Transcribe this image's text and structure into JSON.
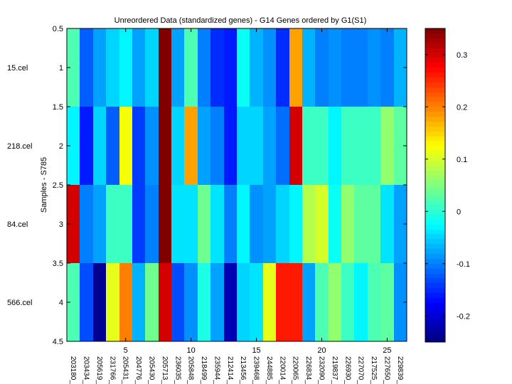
{
  "chart_data": {
    "type": "heatmap",
    "title": "Unreordered Data (standardized genes) - G14 Genes ordered by G1(S1)",
    "ylabel": "Samples - S785",
    "xlabel": "",
    "rows": [
      "15.cel",
      "218.cel",
      "84.cel",
      "566.cel"
    ],
    "columns": [
      "203180_",
      "203434_",
      "205619_",
      "231766_",
      "205431_",
      "204776_",
      "205430_",
      "205713_",
      "236035_",
      "205848_",
      "218499_",
      "235944_",
      "212414_",
      "213456_",
      "239468_",
      "244885_",
      "220014_",
      "220065_",
      "226834_",
      "232090_",
      "219837_",
      "226930_",
      "227070_",
      "217525_",
      "227650_",
      "229839_"
    ],
    "x_ticks": [
      5,
      10,
      15,
      20,
      25
    ],
    "y_ticks": [
      "0.5",
      "1",
      "1.5",
      "2",
      "2.5",
      "3",
      "3.5",
      "4",
      "4.5"
    ],
    "colormap": "jet",
    "color_range": [
      -0.25,
      0.35
    ],
    "colorbar_ticks": [
      "0.3",
      "0.2",
      "0.1",
      "0",
      "-0.1",
      "-0.2"
    ],
    "colorbar_tick_values": [
      0.3,
      0.2,
      0.1,
      0,
      -0.1,
      -0.2
    ],
    "values": [
      [
        0.02,
        -0.12,
        -0.08,
        -0.05,
        -0.03,
        -0.08,
        -0.05,
        0.35,
        -0.08,
        0.02,
        -0.1,
        -0.15,
        -0.16,
        -0.02,
        -0.07,
        -0.09,
        -0.15,
        0.18,
        -0.07,
        -0.1,
        -0.09,
        -0.1,
        -0.1,
        -0.09,
        -0.1,
        -0.07
      ],
      [
        -0.03,
        -0.16,
        -0.05,
        -0.12,
        0.12,
        -0.14,
        -0.09,
        0.35,
        -0.05,
        0.18,
        -0.08,
        -0.1,
        -0.16,
        -0.05,
        -0.05,
        -0.08,
        -0.11,
        0.3,
        0.01,
        0.01,
        -0.03,
        0.01,
        0.01,
        0.01,
        0.06,
        0.03
      ],
      [
        0.3,
        -0.1,
        -0.08,
        0.01,
        0.01,
        -0.14,
        -0.1,
        0.35,
        -0.04,
        -0.04,
        0.04,
        -0.04,
        -0.1,
        -0.03,
        -0.09,
        -0.08,
        -0.05,
        -0.03,
        0.08,
        0.1,
        -0.02,
        0.06,
        0.03,
        0.03,
        -0.04,
        -0.08
      ],
      [
        0.02,
        -0.13,
        -0.24,
        0.11,
        0.2,
        -0.07,
        0.04,
        0.3,
        -0.13,
        -0.09,
        -0.01,
        -0.08,
        -0.22,
        -0.05,
        -0.04,
        0.11,
        0.26,
        0.26,
        -0.08,
        0.02,
        0.06,
        0.01,
        -0.03,
        0.02,
        0.03,
        -0.09
      ]
    ]
  }
}
